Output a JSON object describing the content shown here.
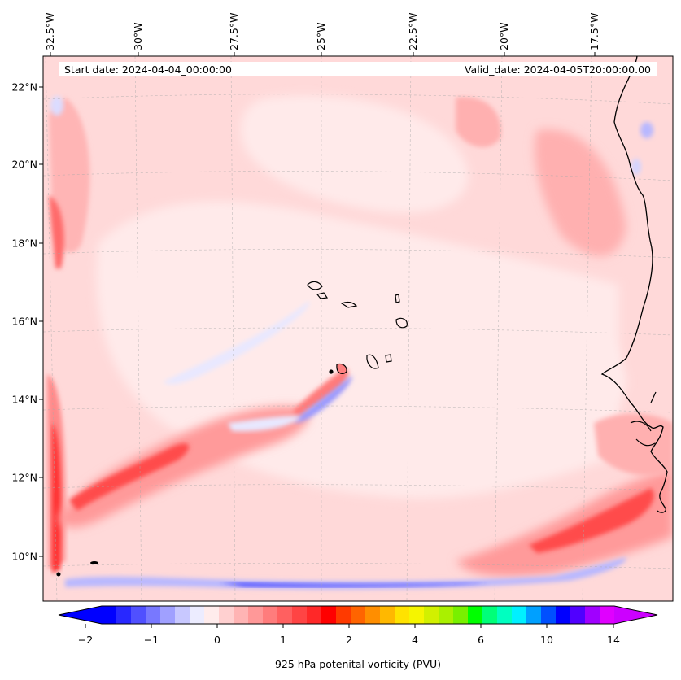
{
  "chart_data": {
    "type": "heatmap",
    "title": "",
    "projection": "map",
    "x_axis": {
      "ticks": [
        "32.5°W",
        "30°W",
        "27.5°W",
        "25°W",
        "22.5°W",
        "20°W",
        "17.5°W"
      ],
      "values": [
        -32.5,
        -30,
        -27.5,
        -25,
        -22.5,
        -20,
        -17.5
      ],
      "range": [
        -32.6,
        -15.4
      ]
    },
    "y_axis": {
      "ticks": [
        "22°N",
        "20°N",
        "18°N",
        "16°N",
        "14°N",
        "12°N",
        "10°N"
      ],
      "values": [
        22,
        20,
        18,
        16,
        14,
        12,
        10
      ],
      "range": [
        8.9,
        22.8
      ]
    },
    "grid": true,
    "annotations": {
      "start_date": "Start date: 2024-04-04_00:00:00",
      "valid_date": "Valid_date: 2024-04-05T20:00:00.00"
    },
    "colorbar": {
      "label": "925 hPa potenital vorticity (PVU)",
      "tick_labels": [
        "−2",
        "−1",
        "0",
        "1",
        "2",
        "4",
        "6",
        "10",
        "14"
      ],
      "extend": "both",
      "colors": [
        "#0000ff",
        "#2828ff",
        "#5050ff",
        "#7878ff",
        "#a0a0ff",
        "#c8c8ff",
        "#ececff",
        "#ffecec",
        "#ffd0d0",
        "#ffb4b4",
        "#ff9898",
        "#ff7c7c",
        "#ff6060",
        "#ff4444",
        "#ff2828",
        "#ff0000",
        "#ff3a00",
        "#ff6400",
        "#ff8e00",
        "#ffb800",
        "#ffe200",
        "#f5f500",
        "#d2f000",
        "#aaf000",
        "#78f000",
        "#00ff00",
        "#00ff78",
        "#00ffc0",
        "#00f0ff",
        "#00a0ff",
        "#0050ff",
        "#0000ff",
        "#5000ff",
        "#a000ff",
        "#e000ff"
      ],
      "under_color": "#0000ff",
      "over_color": "#cc00ff"
    },
    "features": [
      {
        "name": "pv-positive-band-southwest",
        "value": 2.0
      },
      {
        "name": "pv-positive-band-southeast",
        "value": 2.5
      },
      {
        "name": "pv-negative-strip-south",
        "value": -2.0
      },
      {
        "name": "pv-negative-filament-cape-verde",
        "value": -0.6
      }
    ]
  }
}
